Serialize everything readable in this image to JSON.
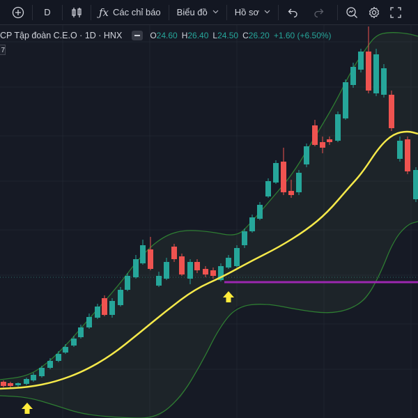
{
  "toolbar": {
    "interval_label": "D",
    "indicators_label": "Các chỉ báo",
    "chart_label": "Biểu đồ",
    "profile_label": "Hồ sơ"
  },
  "legend": {
    "symbol": "CP Tập đoàn C.E.O · 1D · HNX",
    "open_label": "O",
    "open": "24.60",
    "high_label": "H",
    "high": "26.40",
    "low_label": "L",
    "low": "24.50",
    "close_label": "C",
    "close": "26.20",
    "change": "+1.60 (+6.50%)"
  },
  "mini_badge": "7",
  "colors": {
    "up": "#26a69a",
    "down": "#ef5350",
    "ma_line": "#f5e94a",
    "bands": "#2e7d32",
    "horizontal_line": "#9c27b0",
    "markers": "#ffeb3b"
  }
}
